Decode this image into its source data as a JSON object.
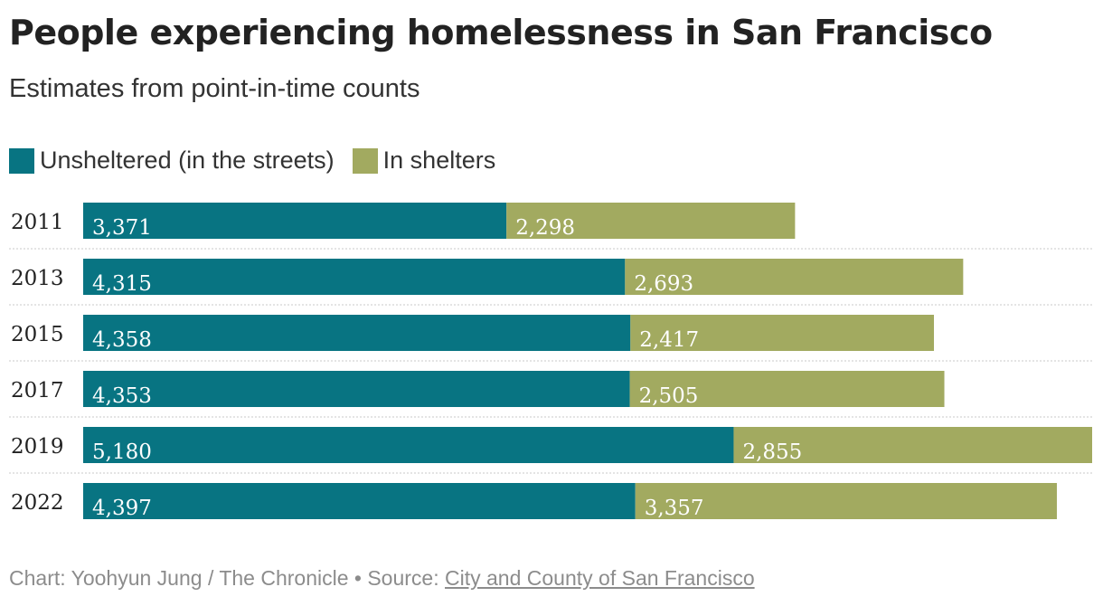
{
  "header": {
    "title": "People experiencing homelessness in San Francisco",
    "subtitle": "Estimates from point-in-time counts"
  },
  "legend": {
    "items": [
      {
        "label": "Unsheltered (in the streets)",
        "color": "#087482"
      },
      {
        "label": "In shelters",
        "color": "#a2aa60"
      }
    ]
  },
  "footer": {
    "credit": "Chart: Yoohyun Jung / The Chronicle",
    "separator": " • ",
    "source_label": "Source: ",
    "source_link": "City and County of San Francisco"
  },
  "chart_data": {
    "type": "bar",
    "orientation": "horizontal",
    "stacked": true,
    "categories": [
      "2011",
      "2013",
      "2015",
      "2017",
      "2019",
      "2022"
    ],
    "series": [
      {
        "name": "Unsheltered (in the streets)",
        "color": "#087482",
        "values": [
          3371,
          4315,
          4358,
          4353,
          5180,
          4397
        ]
      },
      {
        "name": "In shelters",
        "color": "#a2aa60",
        "values": [
          2298,
          2693,
          2417,
          2505,
          2855,
          3357
        ]
      }
    ],
    "value_labels": [
      [
        "3,371",
        "4,315",
        "4,358",
        "4,353",
        "5,180",
        "4,397"
      ],
      [
        "2,298",
        "2,693",
        "2,417",
        "2,505",
        "2,855",
        "3,357"
      ]
    ],
    "xlim": [
      0,
      8035
    ],
    "grid": false,
    "legend_position": "top-left"
  }
}
